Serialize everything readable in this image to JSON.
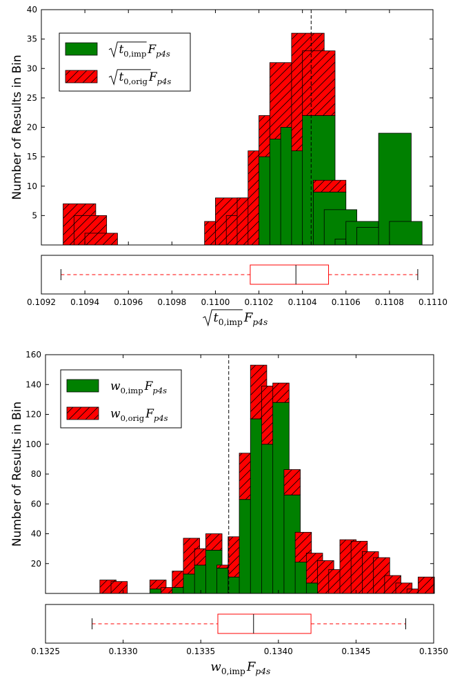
{
  "chart_data": [
    {
      "type": "bar",
      "stacked": true,
      "ylabel": "Number of Results in Bin",
      "ylim": [
        0,
        40
      ],
      "yticks": [
        5,
        10,
        15,
        20,
        25,
        30,
        35,
        40
      ],
      "xlim": [
        0.1092,
        0.111
      ],
      "reference_line_x": 0.11044,
      "legend": {
        "placement": "top-left",
        "entries": [
          {
            "series": "imp",
            "color": "#008000",
            "hatch": false,
            "math": {
              "root": true,
              "base": "t",
              "sub": "0,imp",
              "tail": "F",
              "tail_sub": "p4s"
            }
          },
          {
            "series": "orig",
            "color": "#ff0000",
            "hatch": true,
            "math": {
              "root": true,
              "base": "t",
              "sub": "0,orig",
              "tail": "F",
              "tail_sub": "p4s"
            }
          }
        ]
      },
      "bin_width": 0.00015,
      "bins": [
        {
          "x": 0.1093,
          "imp": 0,
          "orig": 7
        },
        {
          "x": 0.10935,
          "imp": 0,
          "orig": 5
        },
        {
          "x": 0.1094,
          "imp": 0,
          "orig": 2
        },
        {
          "x": 0.10995,
          "imp": 0,
          "orig": 4
        },
        {
          "x": 0.11,
          "imp": 0,
          "orig": 8
        },
        {
          "x": 0.11005,
          "imp": 0,
          "orig": 5
        },
        {
          "x": 0.1101,
          "imp": 0,
          "orig": 8
        },
        {
          "x": 0.11015,
          "imp": 0,
          "orig": 16
        },
        {
          "x": 0.1102,
          "imp": 15,
          "orig": 7
        },
        {
          "x": 0.11025,
          "imp": 18,
          "orig": 13
        },
        {
          "x": 0.1103,
          "imp": 20,
          "orig": 0
        },
        {
          "x": 0.11035,
          "imp": 16,
          "orig": 20
        },
        {
          "x": 0.1104,
          "imp": 22,
          "orig": 11
        },
        {
          "x": 0.11045,
          "imp": 9,
          "orig": 2
        },
        {
          "x": 0.1105,
          "imp": 6,
          "orig": 0
        },
        {
          "x": 0.11055,
          "imp": 1,
          "orig": 0
        },
        {
          "x": 0.1106,
          "imp": 4,
          "orig": 0
        },
        {
          "x": 0.11065,
          "imp": 3,
          "orig": 0
        },
        {
          "x": 0.11075,
          "imp": 19,
          "orig": 0
        },
        {
          "x": 0.1108,
          "imp": 4,
          "orig": 0
        }
      ],
      "boxplot": {
        "min": 0.10929,
        "q1": 0.11016,
        "median": 0.11037,
        "q3": 0.11052,
        "max": 0.11093
      },
      "xticks": [
        {
          "value": 0.1092,
          "label": "0.1092"
        },
        {
          "value": 0.1094,
          "label": "0.1094"
        },
        {
          "value": 0.1096,
          "label": "0.1096"
        },
        {
          "value": 0.1098,
          "label": "0.1098"
        },
        {
          "value": 0.11,
          "label": "0.1100"
        },
        {
          "value": 0.1102,
          "label": "0.1102"
        },
        {
          "value": 0.1104,
          "label": "0.1104"
        },
        {
          "value": 0.1106,
          "label": "0.1106"
        },
        {
          "value": 0.1108,
          "label": "0.1108"
        },
        {
          "value": 0.111,
          "label": "0.1110"
        }
      ],
      "xlabel_math": {
        "root": true,
        "base": "t",
        "sub": "0,imp",
        "tail": "F",
        "tail_sub": "p4s"
      }
    },
    {
      "type": "bar",
      "stacked": true,
      "ylabel": "Number of Results in Bin",
      "ylim": [
        0,
        160
      ],
      "yticks": [
        20,
        40,
        60,
        80,
        100,
        120,
        140,
        160
      ],
      "xlim": [
        0.1325,
        0.135
      ],
      "reference_line_x": 0.13368,
      "legend": {
        "placement": "top-left",
        "entries": [
          {
            "series": "imp",
            "color": "#008000",
            "hatch": false,
            "math": {
              "root": false,
              "base": "w",
              "sub": "0,imp",
              "tail": "F",
              "tail_sub": "p4s"
            }
          },
          {
            "series": "orig",
            "color": "#ff0000",
            "hatch": true,
            "math": {
              "root": false,
              "base": "w",
              "sub": "0,orig",
              "tail": "F",
              "tail_sub": "p4s"
            }
          }
        ]
      },
      "bin_width": 0.000105,
      "bins": [
        {
          "x": 0.13285,
          "imp": 0,
          "orig": 9
        },
        {
          "x": 0.132922,
          "imp": 0,
          "orig": 8
        },
        {
          "x": 0.133172,
          "imp": 3,
          "orig": 6
        },
        {
          "x": 0.133244,
          "imp": 0,
          "orig": 4
        },
        {
          "x": 0.133316,
          "imp": 4,
          "orig": 11
        },
        {
          "x": 0.133388,
          "imp": 13,
          "orig": 24
        },
        {
          "x": 0.13346,
          "imp": 19,
          "orig": 11
        },
        {
          "x": 0.133532,
          "imp": 29,
          "orig": 11
        },
        {
          "x": 0.133604,
          "imp": 17,
          "orig": 2
        },
        {
          "x": 0.133676,
          "imp": 11,
          "orig": 27
        },
        {
          "x": 0.133748,
          "imp": 63,
          "orig": 31
        },
        {
          "x": 0.13382,
          "imp": 117,
          "orig": 36
        },
        {
          "x": 0.133892,
          "imp": 100,
          "orig": 39
        },
        {
          "x": 0.133964,
          "imp": 128,
          "orig": 13
        },
        {
          "x": 0.134036,
          "imp": 66,
          "orig": 17
        },
        {
          "x": 0.134108,
          "imp": 21,
          "orig": 20
        },
        {
          "x": 0.13418,
          "imp": 7,
          "orig": 20
        },
        {
          "x": 0.134252,
          "imp": 0,
          "orig": 22
        },
        {
          "x": 0.134324,
          "imp": 0,
          "orig": 16
        },
        {
          "x": 0.134396,
          "imp": 0,
          "orig": 36
        },
        {
          "x": 0.134468,
          "imp": 0,
          "orig": 35
        },
        {
          "x": 0.13454,
          "imp": 0,
          "orig": 28
        },
        {
          "x": 0.134612,
          "imp": 0,
          "orig": 24
        },
        {
          "x": 0.134684,
          "imp": 0,
          "orig": 12
        },
        {
          "x": 0.134756,
          "imp": 0,
          "orig": 7
        },
        {
          "x": 0.134828,
          "imp": 0,
          "orig": 3
        },
        {
          "x": 0.1349,
          "imp": 0,
          "orig": 11
        }
      ],
      "boxplot": {
        "min": 0.1328,
        "q1": 0.13361,
        "median": 0.13384,
        "q3": 0.13421,
        "max": 0.13482
      },
      "xticks": [
        {
          "value": 0.1325,
          "label": "0.1325"
        },
        {
          "value": 0.133,
          "label": "0.1330"
        },
        {
          "value": 0.1335,
          "label": "0.1335"
        },
        {
          "value": 0.134,
          "label": "0.1340"
        },
        {
          "value": 0.1345,
          "label": "0.1345"
        },
        {
          "value": 0.135,
          "label": "0.1350"
        }
      ],
      "xlabel_math": {
        "root": false,
        "base": "w",
        "sub": "0,imp",
        "tail": "F",
        "tail_sub": "p4s"
      }
    }
  ],
  "colors": {
    "imp": "#008000",
    "orig": "#ff0000",
    "box": "#ff0000",
    "axis": "#000000"
  }
}
